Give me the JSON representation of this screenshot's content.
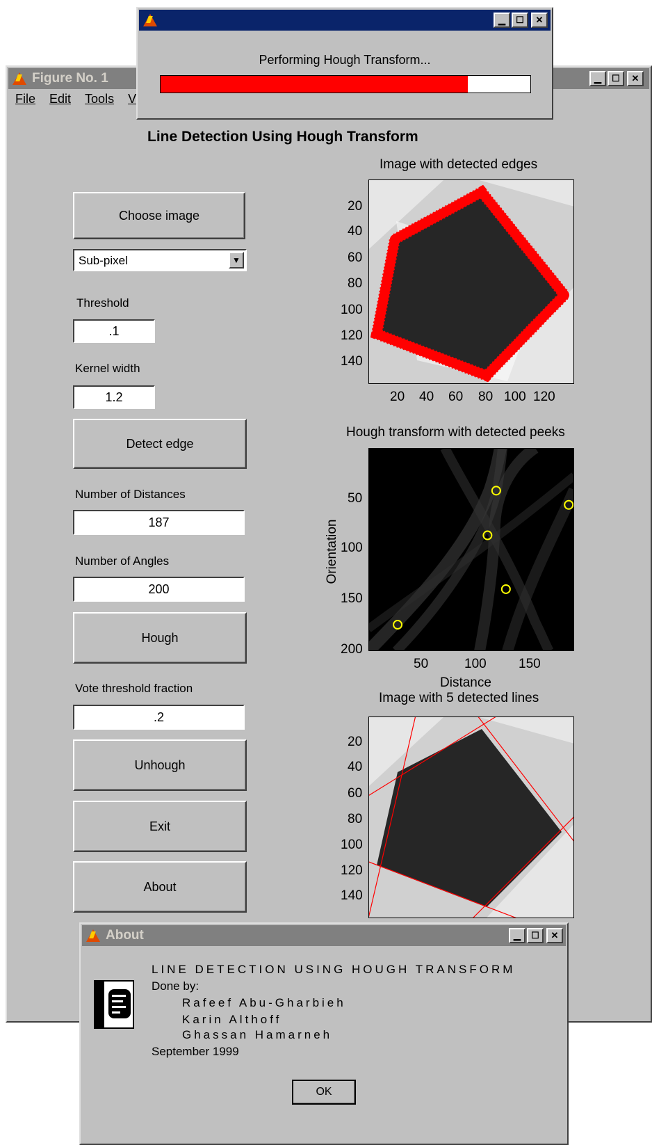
{
  "figure": {
    "title": "Figure No. 1",
    "menu": [
      "File",
      "Edit",
      "Tools",
      "V"
    ],
    "heading": "Line Detection Using Hough Transform",
    "choose_image": "Choose image",
    "method_select": "Sub-pixel",
    "threshold_label": "Threshold",
    "threshold_value": ".1",
    "kernel_label": "Kernel width",
    "kernel_value": "1.2",
    "detect_edge": "Detect edge",
    "num_distances_label": "Number of Distances",
    "num_distances_value": "187",
    "num_angles_label": "Number of Angles",
    "num_angles_value": "200",
    "hough": "Hough",
    "vote_label": "Vote threshold fraction",
    "vote_value": ".2",
    "unhough": "Unhough",
    "exit": "Exit",
    "about": "About"
  },
  "plots": {
    "edges": {
      "title": "Image with detected edges",
      "yticks": [
        "20",
        "40",
        "60",
        "80",
        "100",
        "120",
        "140"
      ],
      "xticks": [
        "20",
        "40",
        "60",
        "80",
        "100",
        "120"
      ]
    },
    "hough": {
      "title": "Hough transform with detected peeks",
      "yticks": [
        "50",
        "100",
        "150",
        "200"
      ],
      "xticks": [
        "50",
        "100",
        "150"
      ],
      "xlabel": "Distance",
      "ylabel": "Orientation",
      "peaks": [
        {
          "distance": 118,
          "orientation": 42
        },
        {
          "distance": 185,
          "orientation": 56
        },
        {
          "distance": 110,
          "orientation": 86
        },
        {
          "distance": 127,
          "orientation": 139
        },
        {
          "distance": 27,
          "orientation": 174
        }
      ],
      "peak_color": "#ffff00"
    },
    "lines": {
      "title": "Image with 5 detected lines",
      "yticks": [
        "20",
        "40",
        "60",
        "80",
        "100",
        "120",
        "140"
      ]
    }
  },
  "progress": {
    "message": "Performing Hough Transform...",
    "fraction": 0.83,
    "bar_color": "#ff0000"
  },
  "about_dialog": {
    "title": "About",
    "line1": "LINE DETECTION USING HOUGH TRANSFORM",
    "line2": "Done by:",
    "author1": "Rafeef Abu-Gharbieh",
    "author2": "Karin Althoff",
    "author3": "Ghassan Hamarneh",
    "date": "September 1999",
    "ok": "OK"
  },
  "colors": {
    "face": "#c0c0c0",
    "edge_color": "#ff0000",
    "active_title": "#0a246a",
    "inactive_title": "#808080"
  }
}
